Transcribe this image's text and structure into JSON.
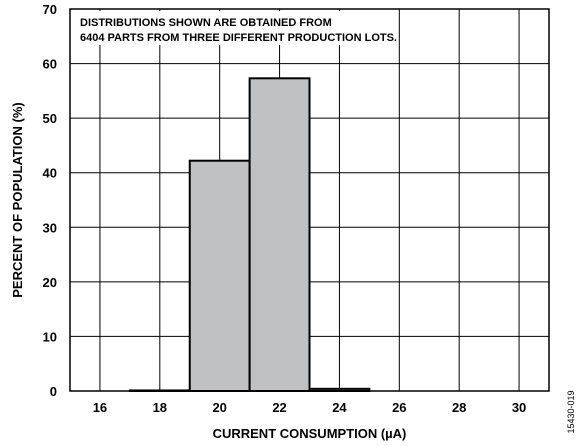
{
  "chart_data": {
    "type": "bar",
    "categories": [
      "16",
      "18",
      "20",
      "22",
      "24",
      "26",
      "28",
      "30"
    ],
    "bins": [
      {
        "from": 15,
        "to": 17,
        "value": 0
      },
      {
        "from": 17,
        "to": 19,
        "value": 0.1
      },
      {
        "from": 19,
        "to": 21,
        "value": 42.2
      },
      {
        "from": 21,
        "to": 23,
        "value": 57.3
      },
      {
        "from": 23,
        "to": 25,
        "value": 0.4
      },
      {
        "from": 25,
        "to": 27,
        "value": 0
      },
      {
        "from": 27,
        "to": 29,
        "value": 0
      },
      {
        "from": 29,
        "to": 31,
        "value": 0
      }
    ],
    "xlim": [
      15,
      31
    ],
    "ylim": [
      0,
      70
    ],
    "x_ticks": [
      16,
      18,
      20,
      22,
      24,
      26,
      28,
      30
    ],
    "y_ticks": [
      0,
      10,
      20,
      30,
      40,
      50,
      60,
      70
    ],
    "grid": true,
    "xlabel": "CURRENT CONSUMPTION (µA)",
    "ylabel": "PERCENT OF POPULATION (%)",
    "annotation": [
      "DISTRIBUTIONS SHOWN ARE OBTAINED FROM",
      "6404 PARTS FROM THREE DIFFERENT PRODUCTION LOTS."
    ],
    "figure_id": "15430-019",
    "colors": {
      "bar_fill": "#c0c1c3",
      "bar_stroke": "#000000",
      "grid": "#000000"
    }
  }
}
